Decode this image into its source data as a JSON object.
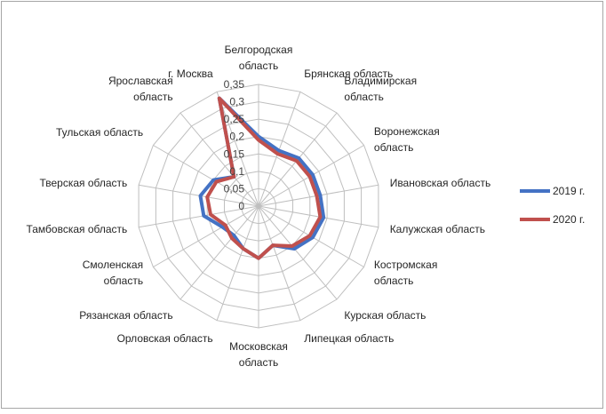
{
  "chart_data": {
    "type": "radar",
    "title": "",
    "categories": [
      "Белгородская область",
      "Брянская область",
      "Владимирская область",
      "Воронежская область",
      "Ивановская область",
      "Калужская область",
      "Костромская область",
      "Курская область",
      "Липецкая область",
      "Московская область",
      "Орловская область",
      "Рязанская область",
      "Смоленская область",
      "Тамбовская область",
      "Тверская область",
      "Тульская область",
      "Ярославская область",
      "г. Москва"
    ],
    "series": [
      {
        "name": "2019 г.",
        "color": "#4472c4",
        "values": [
          0.2,
          0.17,
          0.18,
          0.18,
          0.18,
          0.19,
          0.18,
          0.16,
          0.12,
          0.15,
          0.13,
          0.11,
          0.12,
          0.16,
          0.17,
          0.15,
          0.11,
          0.33
        ]
      },
      {
        "name": "2020 г.",
        "color": "#c0504d",
        "values": [
          0.19,
          0.16,
          0.17,
          0.17,
          0.17,
          0.18,
          0.17,
          0.15,
          0.12,
          0.15,
          0.13,
          0.12,
          0.11,
          0.14,
          0.15,
          0.14,
          0.11,
          0.33
        ]
      }
    ],
    "radial_axis": {
      "range": [
        0,
        0.35
      ],
      "ticks": [
        0,
        0.05,
        0.1,
        0.15,
        0.2,
        0.25,
        0.3,
        0.35
      ],
      "tick_labels": [
        "0",
        "0,05",
        "0,1",
        "0,15",
        "0,2",
        "0,25",
        "0,3",
        "0,35"
      ]
    },
    "grid": true,
    "legend_position": "right"
  }
}
